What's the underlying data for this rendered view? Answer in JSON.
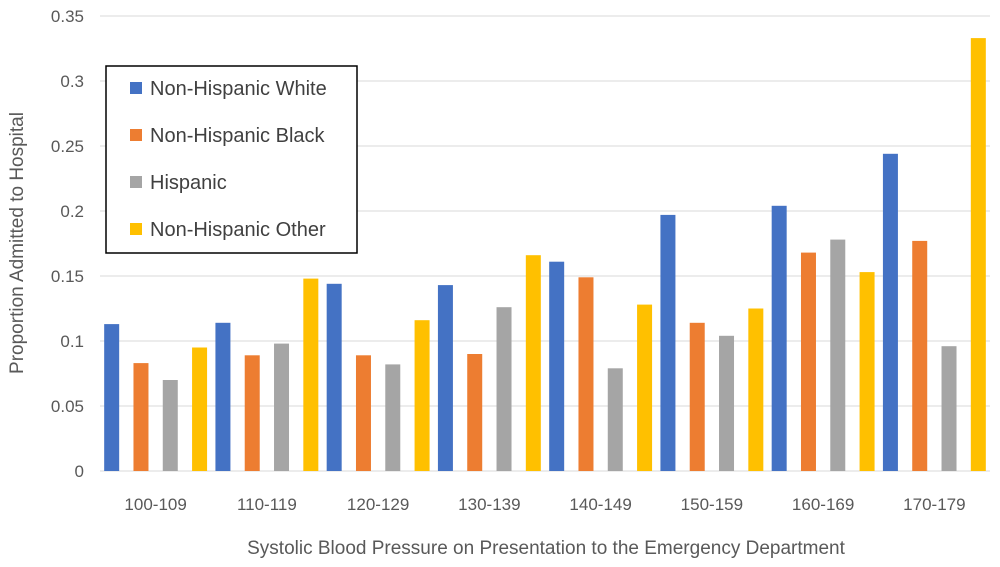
{
  "chart_data": {
    "type": "bar",
    "title": "",
    "xlabel": "Systolic Blood Pressure on Presentation to the Emergency Department",
    "ylabel": "Proportion Admitted to Hospital",
    "ylim": [
      0,
      0.35
    ],
    "yticks": [
      {
        "value": 0,
        "label": "0"
      },
      {
        "value": 0.05,
        "label": "0.05"
      },
      {
        "value": 0.1,
        "label": "0.1"
      },
      {
        "value": 0.15,
        "label": "0.15"
      },
      {
        "value": 0.2,
        "label": "0.2"
      },
      {
        "value": 0.25,
        "label": "0.25"
      },
      {
        "value": 0.3,
        "label": "0.3"
      },
      {
        "value": 0.35,
        "label": "0.35"
      }
    ],
    "grid": true,
    "legend_position": "top-left",
    "categories": [
      "100-109",
      "110-119",
      "120-129",
      "130-139",
      "140-149",
      "150-159",
      "160-169",
      "170-179"
    ],
    "series": [
      {
        "name": "Non-Hispanic White",
        "color": "#4472C4",
        "values": [
          0.113,
          0.114,
          0.144,
          0.143,
          0.161,
          0.197,
          0.204,
          0.244
        ]
      },
      {
        "name": "Non-Hispanic Black",
        "color": "#ED7D31",
        "values": [
          0.083,
          0.089,
          0.089,
          0.09,
          0.149,
          0.114,
          0.168,
          0.177
        ]
      },
      {
        "name": "Hispanic",
        "color": "#A5A5A5",
        "values": [
          0.07,
          0.098,
          0.082,
          0.126,
          0.079,
          0.104,
          0.178,
          0.096
        ]
      },
      {
        "name": "Non-Hispanic Other",
        "color": "#FFC000",
        "values": [
          0.095,
          0.148,
          0.116,
          0.166,
          0.128,
          0.125,
          0.153,
          0.333
        ]
      }
    ]
  }
}
